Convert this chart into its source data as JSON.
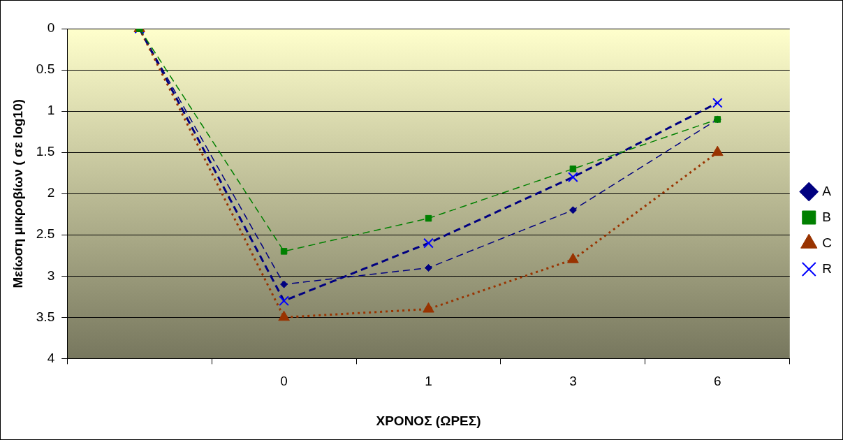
{
  "chart_data": {
    "type": "line",
    "xlabel": "ΧΡΟΝΟΣ (ΩΡΕΣ)",
    "ylabel": "Μείωση μικροβίων ( σε log10)",
    "categories": [
      null,
      "0",
      "1",
      "3",
      "6"
    ],
    "ylim": [
      4,
      0
    ],
    "yticks": [
      0,
      0.5,
      1,
      1.5,
      2,
      2.5,
      3,
      3.5,
      4
    ],
    "grid": "y",
    "legend": "right",
    "series": [
      {
        "name": "A",
        "color": "#000080",
        "marker": "diamond",
        "line_style": "dashed",
        "values": [
          0,
          3.1,
          2.9,
          2.2,
          1.1
        ]
      },
      {
        "name": "B",
        "color": "#008000",
        "marker": "square",
        "line_style": "dashed",
        "values": [
          0,
          2.7,
          2.3,
          1.7,
          1.1
        ]
      },
      {
        "name": "C",
        "color": "#993300",
        "marker": "triangle",
        "line_style": "dotted",
        "values": [
          0,
          3.5,
          3.4,
          2.8,
          1.5
        ]
      },
      {
        "name": "R",
        "color": "#000080",
        "marker": "cross",
        "line_style": "dashed",
        "values": [
          0,
          3.3,
          2.6,
          1.8,
          0.9
        ]
      }
    ]
  }
}
